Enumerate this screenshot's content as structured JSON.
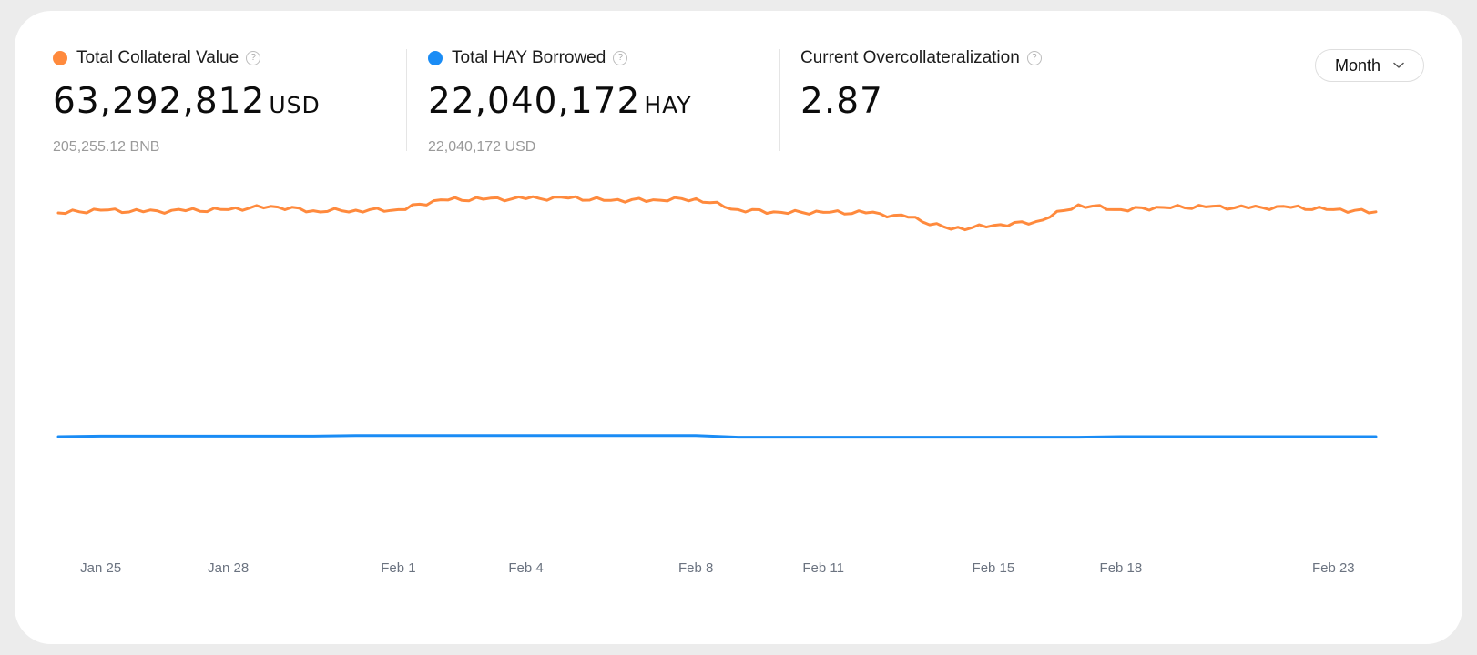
{
  "stats": {
    "collateral": {
      "title": "Total Collateral Value",
      "value": "63,292,812",
      "unit": "USD",
      "sub": "205,255.12 BNB",
      "color": "#ff8a3d"
    },
    "borrowed": {
      "title": "Total HAY Borrowed",
      "value": "22,040,172",
      "unit": "HAY",
      "sub": "22,040,172 USD",
      "color": "#1a8cf5"
    },
    "overcollateralization": {
      "title": "Current Overcollateralization",
      "value": "2.87"
    }
  },
  "help_icon": "question-circle-icon",
  "period_select": {
    "label": "Month",
    "icon": "chevron-down-icon"
  },
  "chart_data": {
    "type": "line",
    "title": "",
    "xlabel": "",
    "ylabel": "",
    "x_ticks": [
      "Jan 25",
      "Jan 28",
      "Feb 1",
      "Feb 4",
      "Feb 8",
      "Feb 11",
      "Feb 15",
      "Feb 18",
      "Feb 23"
    ],
    "x_range": [
      "Jan 24",
      "Feb 24"
    ],
    "x": [
      "Jan 24",
      "Jan 25",
      "Jan 26",
      "Jan 27",
      "Jan 28",
      "Jan 29",
      "Jan 30",
      "Jan 31",
      "Feb 1",
      "Feb 2",
      "Feb 3",
      "Feb 4",
      "Feb 5",
      "Feb 6",
      "Feb 7",
      "Feb 8",
      "Feb 9",
      "Feb 10",
      "Feb 11",
      "Feb 12",
      "Feb 13",
      "Feb 14",
      "Feb 15",
      "Feb 16",
      "Feb 17",
      "Feb 18",
      "Feb 19",
      "Feb 20",
      "Feb 21",
      "Feb 22",
      "Feb 23",
      "Feb 24"
    ],
    "ylim": [
      0,
      100000000
    ],
    "grid": false,
    "series": [
      {
        "color": "#ff8a3d",
        "values": [
          63.0,
          63.5,
          63.2,
          63.4,
          63.6,
          64.2,
          63.4,
          63.5,
          63.6,
          65.4,
          65.5,
          65.6,
          65.7,
          65.3,
          65.4,
          65.6,
          63.6,
          63.1,
          63.1,
          63.0,
          62.2,
          60.0,
          60.7,
          61.4,
          64.5,
          63.6,
          64.0,
          64.1,
          63.9,
          64.0,
          63.6,
          63.2
        ]
      },
      {
        "color": "#1a8cf5",
        "values": [
          22.0,
          22.1,
          22.1,
          22.1,
          22.1,
          22.1,
          22.1,
          22.2,
          22.2,
          22.2,
          22.2,
          22.2,
          22.2,
          22.2,
          22.2,
          22.2,
          21.9,
          21.9,
          21.9,
          21.9,
          21.9,
          21.9,
          21.9,
          21.9,
          21.9,
          22.0,
          22.0,
          22.0,
          22.0,
          22.0,
          22.0,
          22.0
        ]
      }
    ]
  }
}
